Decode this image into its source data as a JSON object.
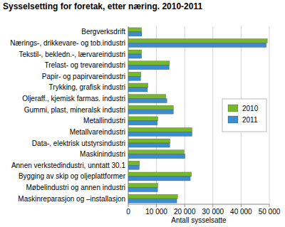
{
  "chart_data": {
    "type": "bar",
    "orientation": "horizontal",
    "title": "Sysselsetting for foretak, etter næring. 2010-2011",
    "x_label": "Antall sysselsatte",
    "categories": [
      "Bergverksdrift",
      "Nærings-, drikkevare- og tob.industri",
      "Tekstil-, bekledn.-, lærvareindustri",
      "Trelast- og trevareindustri",
      "Papir- og papirvareindustri",
      "Trykking, grafisk industri",
      "Oljeraff., kjemisk farmas. industri",
      "Gummi, plast, mineralsk industri",
      "Metallindustri",
      "Metallvareindustri",
      "Data-, elektrisk utstyrsindustri",
      "Maskinindustri",
      "Annen verkstedindustri, unntatt 30.1",
      "Bygging av skip og oljeplattformer",
      "Møbelindustri og annen industri",
      "Maskinreparasjon og –installasjon"
    ],
    "series": [
      {
        "name": "2010",
        "color": "#78b72c",
        "values": [
          4700,
          49300,
          4700,
          14600,
          4500,
          7000,
          13300,
          16000,
          10500,
          22600,
          14800,
          19800,
          4000,
          22400,
          10500,
          17500
        ]
      },
      {
        "name": "2011",
        "color": "#3b8dd0",
        "values": [
          4800,
          48900,
          4700,
          14500,
          4400,
          6800,
          13700,
          16000,
          10300,
          22600,
          14700,
          20100,
          3900,
          22000,
          10400,
          17200
        ]
      }
    ],
    "xlim": [
      0,
      50000
    ],
    "xticks": [
      0,
      {
        "value": 10000,
        "label": "10 000"
      },
      {
        "value": 20000,
        "label": "20 000"
      },
      {
        "value": 30000,
        "label": "30 000"
      },
      {
        "value": 40000,
        "label": "40 000"
      },
      {
        "value": 50000,
        "label": "50 000"
      }
    ],
    "grid": true,
    "legend": "right"
  }
}
